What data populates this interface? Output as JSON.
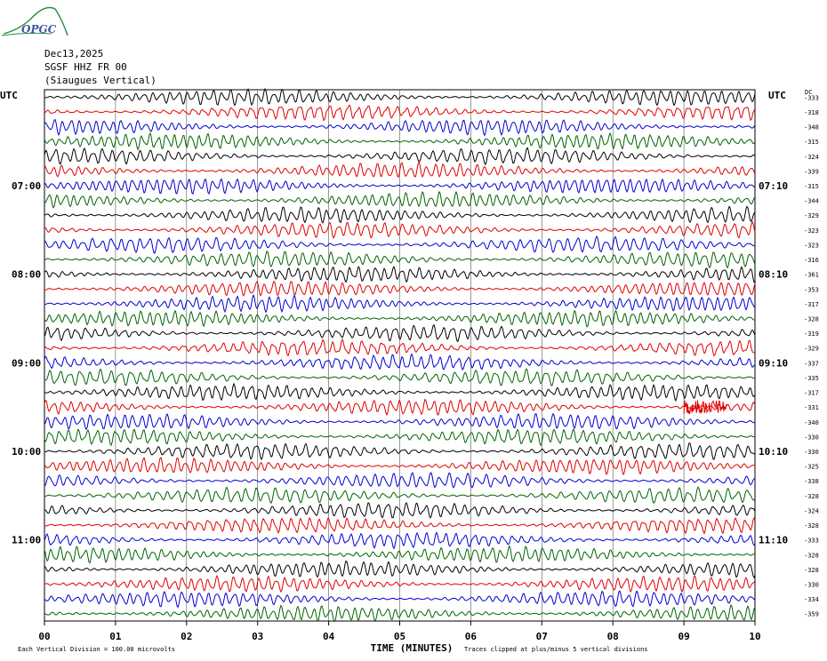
{
  "logo": {
    "text": "OPGC"
  },
  "header": {
    "date": "Dec13,2025",
    "station": "SGSF HHZ FR 00",
    "location": "(Siaugues Vertical)"
  },
  "chart_data": {
    "type": "helicorder",
    "left_axis_title": "UTC",
    "right_axis_title": "UTC",
    "right_col_title": "DC",
    "xlabel": "TIME (MINUTES)",
    "xlim": [
      0,
      10
    ],
    "x_ticks": [
      "00",
      "01",
      "02",
      "03",
      "04",
      "05",
      "06",
      "07",
      "08",
      "09",
      "10"
    ],
    "left_time_labels": [
      {
        "row": 6,
        "label": "07:00"
      },
      {
        "row": 12,
        "label": "08:00"
      },
      {
        "row": 18,
        "label": "09:00"
      },
      {
        "row": 24,
        "label": "10:00"
      },
      {
        "row": 30,
        "label": "11:00"
      }
    ],
    "right_time_labels": [
      {
        "row": 6,
        "label": "07:10"
      },
      {
        "row": 12,
        "label": "08:10"
      },
      {
        "row": 18,
        "label": "09:10"
      },
      {
        "row": 24,
        "label": "10:10"
      },
      {
        "row": 30,
        "label": "11:10"
      }
    ],
    "trace_colors": [
      "#000000",
      "#e00000",
      "#0000d0",
      "#006400"
    ],
    "dc_offsets": [
      "-333",
      "-318",
      "-348",
      "-315",
      "-324",
      "-339",
      "-315",
      "-344",
      "-329",
      "-323",
      "-323",
      "-316",
      "-361",
      "-353",
      "-317",
      "-328",
      "-319",
      "-329",
      "-337",
      "-335",
      "-317",
      "-331",
      "-340",
      "-330",
      "-330",
      "-325",
      "-338",
      "-328",
      "-324",
      "-328",
      "-333",
      "-328",
      "-328",
      "-330",
      "-334",
      "-359"
    ],
    "event": {
      "row": 21,
      "x_start_min": 9.0,
      "x_end_min": 9.6,
      "color": "#e00000"
    },
    "footer_left": "Each Vertical Division =  100.00 microvolts",
    "footer_right": "Traces clipped at plus/minus 5 vertical divisions"
  }
}
